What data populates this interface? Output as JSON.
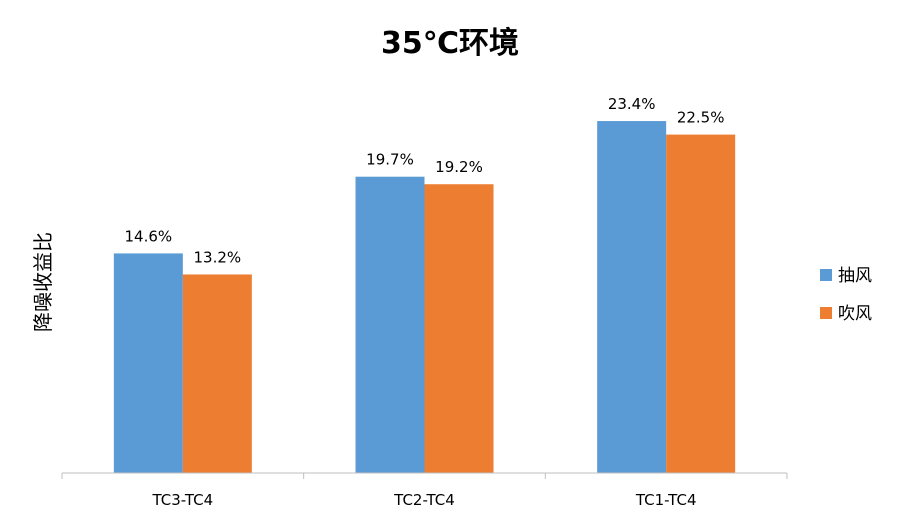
{
  "chart_data": {
    "type": "bar",
    "title": "35℃环境",
    "xlabel": "",
    "ylabel": "降噪收益比",
    "categories": [
      "TC3-TC4",
      "TC2-TC4",
      "TC1-TC4"
    ],
    "series": [
      {
        "name": "抽风",
        "color": "#5b9bd5",
        "values": [
          14.6,
          19.7,
          23.4
        ],
        "labels": [
          "14.6%",
          "19.7%",
          "23.4%"
        ]
      },
      {
        "name": "吹风",
        "color": "#ed7d31",
        "values": [
          13.2,
          19.2,
          22.5
        ],
        "labels": [
          "13.2%",
          "19.2%",
          "22.5%"
        ]
      }
    ],
    "ylim": [
      0,
      24.8
    ],
    "grid": false,
    "legend_position": "right"
  }
}
